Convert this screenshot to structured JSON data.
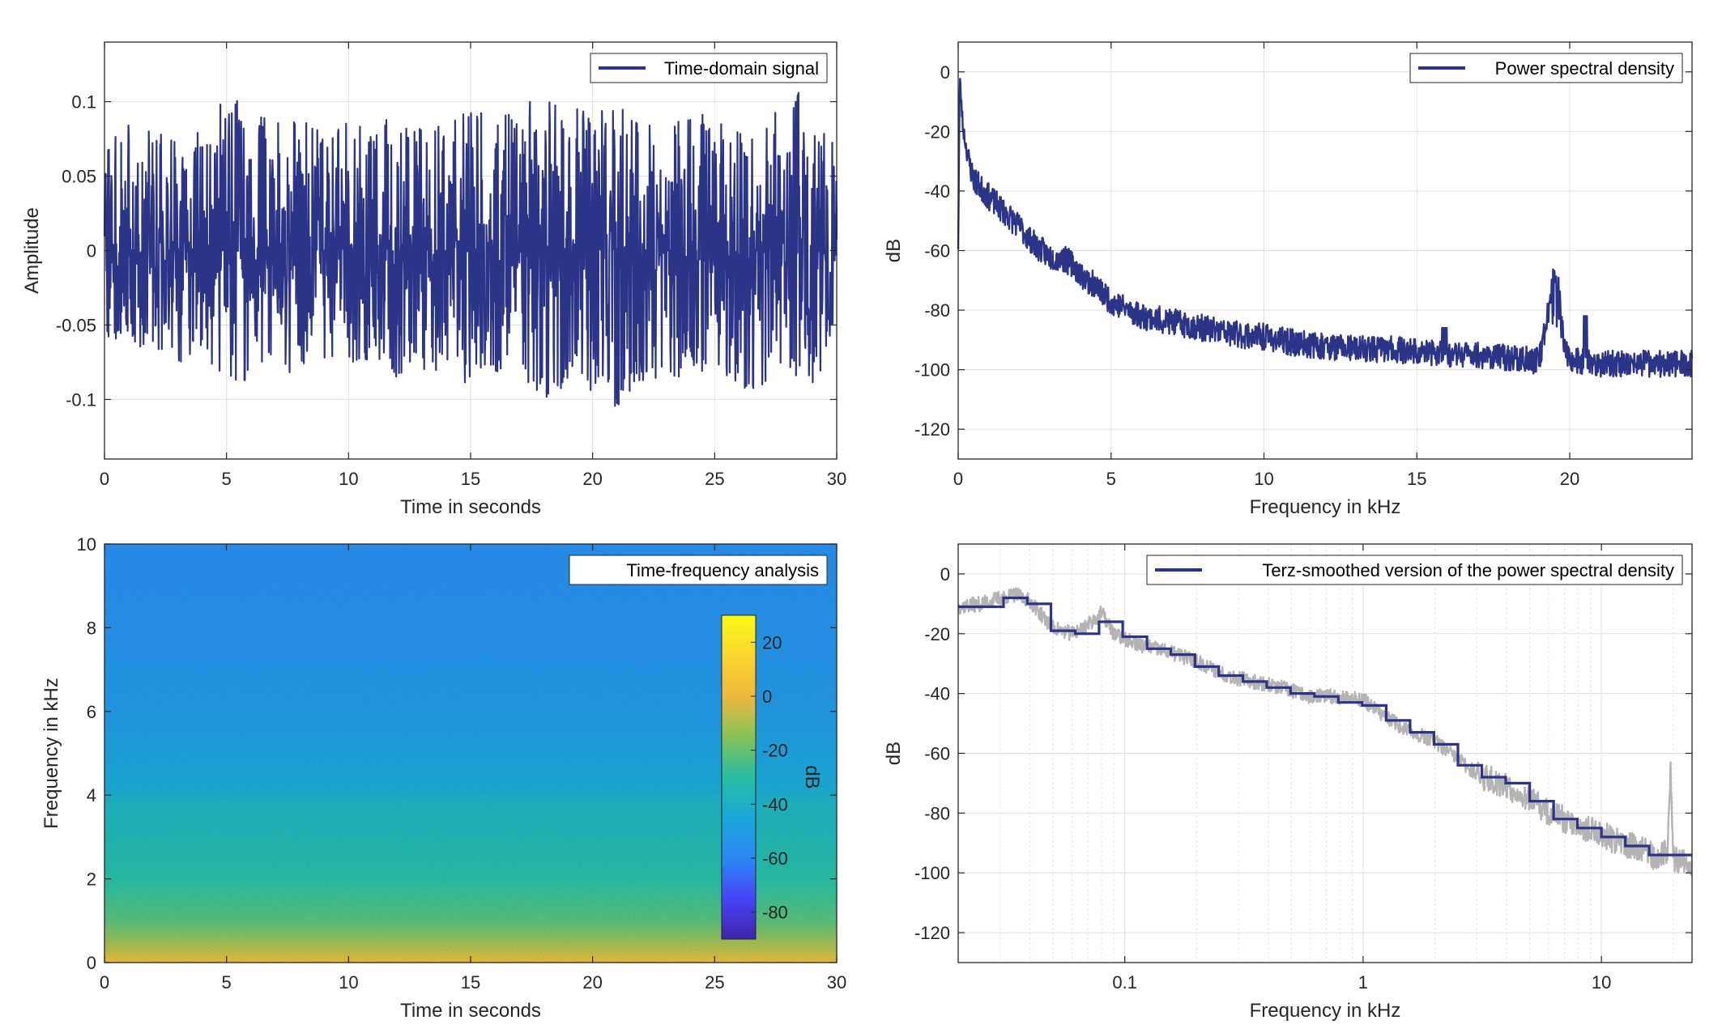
{
  "chart_data": [
    {
      "type": "line",
      "legend": "Time-domain signal",
      "legend_placement": "top-right",
      "xlabel": "Time in seconds",
      "ylabel": "Amplitude",
      "xlim": [
        0,
        30
      ],
      "ylim": [
        -0.14,
        0.14
      ],
      "xticks": [
        0,
        5,
        10,
        15,
        20,
        25,
        30
      ],
      "xtick_labels": [
        "0",
        "5",
        "10",
        "15",
        "20",
        "25",
        "30"
      ],
      "yticks": [
        -0.1,
        -0.05,
        0,
        0.05,
        0.1
      ],
      "ytick_labels": [
        "-0.1",
        "-0.05",
        "0",
        "0.05",
        "0.1"
      ],
      "grid": true,
      "color": "#2b3486",
      "envelope": {
        "t": [
          0,
          1,
          2,
          3,
          4,
          5,
          6,
          7,
          8,
          9,
          10,
          11,
          12,
          13,
          14,
          15,
          16,
          17,
          18,
          19,
          20,
          21,
          22,
          23,
          24,
          25,
          26,
          27,
          28,
          29,
          30
        ],
        "upper": [
          0.075,
          0.085,
          0.08,
          0.075,
          0.08,
          0.105,
          0.095,
          0.085,
          0.09,
          0.085,
          0.09,
          0.085,
          0.09,
          0.085,
          0.09,
          0.095,
          0.095,
          0.09,
          0.115,
          0.1,
          0.1,
          0.1,
          0.085,
          0.085,
          0.095,
          0.095,
          0.085,
          0.085,
          0.105,
          0.11,
          0.065
        ],
        "lower": [
          -0.06,
          -0.065,
          -0.075,
          -0.075,
          -0.08,
          -0.09,
          -0.09,
          -0.08,
          -0.085,
          -0.075,
          -0.08,
          -0.08,
          -0.085,
          -0.08,
          -0.085,
          -0.09,
          -0.09,
          -0.085,
          -0.1,
          -0.09,
          -0.1,
          -0.105,
          -0.09,
          -0.095,
          -0.085,
          -0.085,
          -0.095,
          -0.095,
          -0.085,
          -0.09,
          -0.065
        ]
      }
    },
    {
      "type": "line",
      "legend": "Power spectral density",
      "legend_placement": "top-right",
      "xlabel": "Frequency in kHz",
      "ylabel": "dB",
      "xlim": [
        0,
        24
      ],
      "ylim": [
        -130,
        10
      ],
      "xticks": [
        0,
        5,
        10,
        15,
        20
      ],
      "xtick_labels": [
        "0",
        "5",
        "10",
        "15",
        "20"
      ],
      "yticks": [
        0,
        -20,
        -40,
        -60,
        -80,
        -100,
        -120
      ],
      "ytick_labels": [
        "0",
        "-20",
        "-40",
        "-60",
        "-80",
        "-100",
        "-120"
      ],
      "grid": true,
      "color": "#2b3486",
      "x": [
        0,
        0.05,
        0.15,
        0.3,
        0.5,
        1,
        1.5,
        2,
        2.5,
        3,
        3.5,
        3.8,
        4,
        4.5,
        5,
        6,
        7,
        8,
        9,
        10,
        11,
        12,
        13,
        14,
        15,
        16,
        17,
        18,
        19,
        19.3,
        19.5,
        19.7,
        20,
        21,
        22,
        23,
        24
      ],
      "y": [
        -58,
        -2,
        -18,
        -28,
        -36,
        -42,
        -47,
        -52,
        -58,
        -62,
        -63,
        -65,
        -68,
        -72,
        -77,
        -82,
        -84,
        -86,
        -88,
        -89,
        -91,
        -92,
        -93,
        -93,
        -94,
        -95,
        -95,
        -96,
        -97,
        -80,
        -65,
        -85,
        -97,
        -98,
        -98,
        -98,
        -98
      ]
    },
    {
      "type": "heatmap",
      "legend": "Time-frequency analysis",
      "legend_placement": "top-right",
      "xlabel": "Time in seconds",
      "ylabel": "Frequency in kHz",
      "xlim": [
        0,
        30
      ],
      "ylim": [
        0,
        10
      ],
      "xticks": [
        0,
        5,
        10,
        15,
        20,
        25,
        30
      ],
      "xtick_labels": [
        "0",
        "5",
        "10",
        "15",
        "20",
        "25",
        "30"
      ],
      "yticks": [
        0,
        2,
        4,
        6,
        8,
        10
      ],
      "ytick_labels": [
        "0",
        "2",
        "4",
        "6",
        "8",
        "10"
      ],
      "colorbar": {
        "label": "dB",
        "range": [
          -90,
          30
        ],
        "ticks": [
          20,
          0,
          -20,
          -40,
          -60,
          -80
        ],
        "tick_labels": [
          "20",
          "0",
          "-20",
          "-40",
          "-60",
          "-80"
        ],
        "colormap": [
          "#3e26a8",
          "#4743f8",
          "#2c88f2",
          "#1aa8d8",
          "#27bda4",
          "#86c257",
          "#eeb93c",
          "#fbd52e",
          "#f9fb15"
        ]
      },
      "frequency_profile_khz": [
        0,
        0.3,
        1,
        1.5,
        2,
        3,
        3.8,
        4.2,
        5,
        6,
        7,
        8,
        10
      ],
      "frequency_profile_db": [
        0,
        -8,
        -22,
        -26,
        -30,
        -35,
        -38,
        -44,
        -48,
        -52,
        -54,
        -55,
        -57
      ]
    },
    {
      "type": "line",
      "legend": "Terz-smoothed version of the power spectral density",
      "legend_placement": "top-right",
      "xlabel": "Frequency in kHz",
      "ylabel": "dB",
      "xscale": "log",
      "xlim": [
        0.02,
        24
      ],
      "ylim": [
        -130,
        10
      ],
      "xticks": [
        0.1,
        1,
        10
      ],
      "xtick_labels": [
        "0.1",
        "1",
        "10"
      ],
      "yticks": [
        0,
        -20,
        -40,
        -60,
        -80,
        -100,
        -120
      ],
      "ytick_labels": [
        "0",
        "-20",
        "-40",
        "-60",
        "-80",
        "-100",
        "-120"
      ],
      "grid": true,
      "series": [
        {
          "name": "Terz-smoothed version of the power spectral density",
          "color": "#2b3486",
          "x": [
            0.02,
            0.031,
            0.039,
            0.049,
            0.062,
            0.078,
            0.098,
            0.124,
            0.156,
            0.197,
            0.248,
            0.313,
            0.394,
            0.496,
            0.625,
            0.787,
            0.992,
            1.25,
            1.575,
            1.984,
            2.5,
            3.15,
            3.969,
            5,
            6.3,
            7.937,
            10,
            12.6,
            15.87,
            24
          ],
          "y": [
            -11,
            -8,
            -10,
            -19,
            -20,
            -16,
            -21,
            -25,
            -27,
            -31,
            -34,
            -36,
            -38,
            -40,
            -41,
            -43,
            -44,
            -49,
            -53,
            -57,
            -64,
            -68,
            -70,
            -76,
            -82,
            -85,
            -88,
            -91,
            -94,
            -94
          ]
        },
        {
          "name": "",
          "color": "#b4b4b4",
          "x": [
            0.02,
            0.025,
            0.03,
            0.035,
            0.04,
            0.045,
            0.05,
            0.06,
            0.07,
            0.08,
            0.09,
            0.1,
            0.12,
            0.15,
            0.2,
            0.25,
            0.3,
            0.4,
            0.5,
            0.6,
            0.8,
            1,
            1.2,
            1.5,
            2,
            2.5,
            3,
            4,
            5,
            6,
            8,
            10,
            12,
            15,
            17,
            19,
            19.5,
            20,
            22,
            24
          ],
          "y": [
            -11,
            -10,
            -8,
            -7,
            -9,
            -14,
            -18,
            -20,
            -17,
            -13,
            -20,
            -22,
            -24,
            -26,
            -29,
            -33,
            -35,
            -37,
            -39,
            -41,
            -41,
            -42,
            -47,
            -52,
            -56,
            -62,
            -67,
            -71,
            -75,
            -80,
            -84,
            -87,
            -90,
            -92,
            -95,
            -93,
            -62,
            -95,
            -96,
            -97
          ]
        }
      ]
    }
  ]
}
